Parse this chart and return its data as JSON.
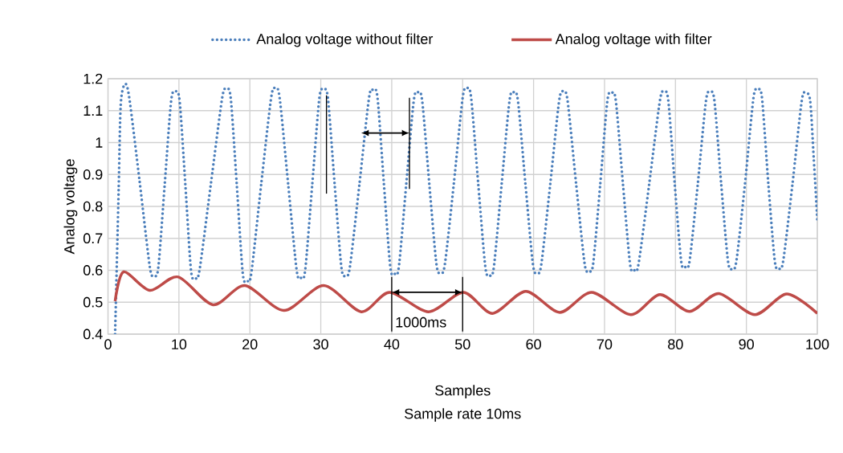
{
  "chart_data": {
    "type": "line",
    "xlabel": "Samples",
    "ylabel": "Analog voltage",
    "annotations": [
      {
        "text": "1000ms",
        "x": 39.7,
        "y": 0.531
      },
      "Sample rate 10ms"
    ],
    "xlim": [
      0,
      100
    ],
    "xticks": [
      0,
      10,
      20,
      30,
      40,
      50,
      60,
      70,
      80,
      90,
      100
    ],
    "ylim": [
      0.4,
      1.2
    ],
    "yticks": [
      0.4,
      0.5,
      0.6,
      0.7,
      0.8,
      0.9,
      1,
      1.1,
      1.2
    ],
    "grid": true,
    "legend": "top",
    "marker": "none",
    "series": [
      {
        "name": "Analog voltage without filter",
        "color": "#4a7ebb",
        "line_style": "dotted",
        "x": [
          1,
          1.5,
          1.8,
          2.4,
          3.0,
          4.45,
          5.9,
          6.5,
          7.1,
          8.0,
          8.9,
          9.5,
          10.1,
          10.9,
          11.7,
          12.3,
          12.9,
          14.5,
          16.1,
          16.7,
          17.3,
          18.15,
          19.0,
          19.6,
          20.2,
          21.6,
          23.0,
          23.6,
          24.2,
          25.4,
          26.6,
          27.2,
          27.8,
          28.8,
          29.8,
          30.4,
          31.0,
          31.95,
          32.9,
          33.5,
          34.1,
          35.45,
          36.8,
          37.4,
          38.0,
          38.9,
          39.8,
          40.4,
          41.0,
          42.05,
          43.1,
          43.7,
          44.3,
          45.3,
          46.3,
          46.9,
          47.5,
          48.75,
          50.0,
          50.6,
          51.2,
          52.2,
          53.2,
          53.8,
          54.4,
          55.5,
          56.6,
          57.2,
          57.8,
          58.85,
          59.9,
          60.5,
          61.1,
          62.35,
          63.6,
          64.2,
          64.8,
          66.0,
          67.2,
          67.8,
          68.4,
          69.4,
          70.4,
          71.0,
          71.6,
          72.6,
          73.6,
          74.2,
          74.8,
          76.3,
          77.8,
          78.4,
          79.0,
          79.9,
          80.8,
          81.4,
          82.0,
          83.15,
          84.3,
          84.9,
          85.5,
          86.45,
          87.4,
          88.0,
          88.6,
          89.8,
          91.0,
          91.6,
          92.2,
          93.1,
          94.0,
          94.6,
          95.2,
          96.5,
          97.8,
          98.4,
          99.0,
          99.5,
          100
        ],
        "values": [
          0.4,
          0.85,
          1.12,
          1.183,
          1.14,
          0.88,
          0.61,
          0.584,
          0.61,
          0.87,
          1.13,
          1.16,
          1.13,
          0.87,
          0.6,
          0.576,
          0.6,
          0.87,
          1.14,
          1.166,
          1.14,
          0.87,
          0.59,
          0.568,
          0.59,
          0.87,
          1.14,
          1.17,
          1.14,
          0.87,
          0.6,
          0.576,
          0.6,
          0.87,
          1.14,
          1.164,
          1.14,
          0.87,
          0.61,
          0.584,
          0.61,
          0.87,
          1.14,
          1.164,
          1.14,
          0.87,
          0.61,
          0.589,
          0.61,
          0.87,
          1.13,
          1.158,
          1.13,
          0.87,
          0.62,
          0.592,
          0.62,
          0.87,
          1.14,
          1.17,
          1.14,
          0.87,
          0.61,
          0.584,
          0.61,
          0.87,
          1.13,
          1.158,
          1.13,
          0.87,
          0.62,
          0.591,
          0.62,
          0.87,
          1.13,
          1.16,
          1.13,
          0.87,
          0.62,
          0.6,
          0.62,
          0.87,
          1.13,
          1.155,
          1.13,
          0.87,
          0.62,
          0.6,
          0.62,
          0.87,
          1.13,
          1.16,
          1.13,
          0.87,
          0.63,
          0.61,
          0.63,
          0.87,
          1.13,
          1.158,
          1.13,
          0.87,
          0.63,
          0.604,
          0.63,
          0.87,
          1.14,
          1.164,
          1.14,
          0.87,
          0.63,
          0.605,
          0.63,
          0.87,
          1.13,
          1.155,
          1.13,
          0.95,
          0.76
        ]
      },
      {
        "name": "Analog voltage with filter",
        "color": "#be4b48",
        "line_style": "solid",
        "x": [
          1,
          2.2,
          5.9,
          9.9,
          14.8,
          19.3,
          24.8,
          30.4,
          35.7,
          39.7,
          45.2,
          50.1,
          54.2,
          58.9,
          63.7,
          68.2,
          73.7,
          77.8,
          82.0,
          86.1,
          91.2,
          95.7,
          100
        ],
        "values": [
          0.503,
          0.595,
          0.537,
          0.579,
          0.492,
          0.552,
          0.474,
          0.552,
          0.47,
          0.531,
          0.47,
          0.531,
          0.465,
          0.534,
          0.468,
          0.531,
          0.461,
          0.524,
          0.471,
          0.527,
          0.461,
          0.526,
          0.465
        ]
      }
    ]
  }
}
